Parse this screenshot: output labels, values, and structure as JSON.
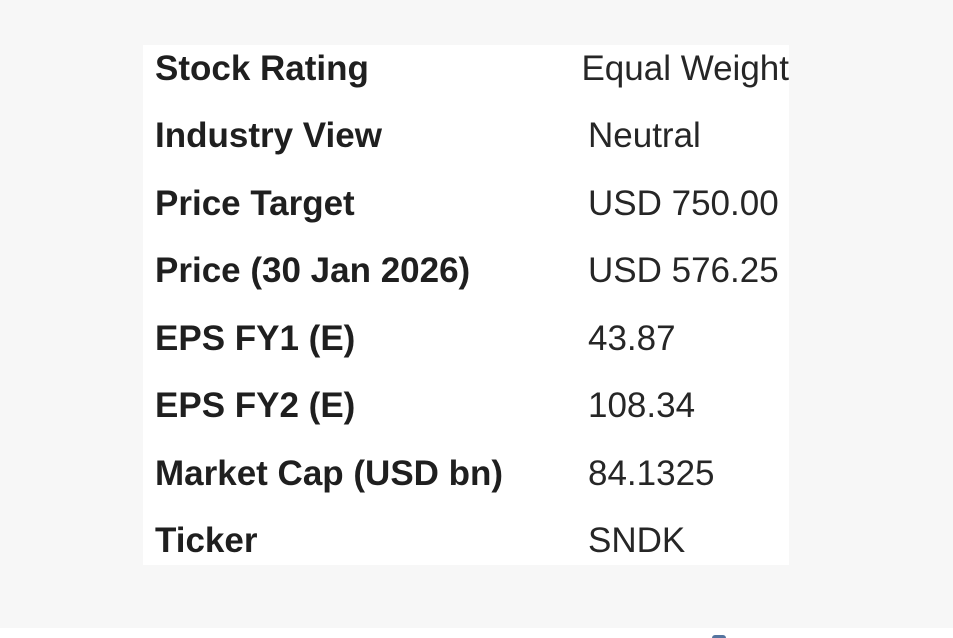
{
  "summary_table": {
    "rows": [
      {
        "label": "Stock Rating",
        "value": "Equal Weight"
      },
      {
        "label": "Industry View",
        "value": "Neutral"
      },
      {
        "label": "Price Target",
        "value": "USD 750.00"
      },
      {
        "label": "Price (30 Jan 2026)",
        "value": "USD 576.25"
      },
      {
        "label": "EPS FY1 (E)",
        "value": "43.87"
      },
      {
        "label": "EPS FY2 (E)",
        "value": "108.34"
      },
      {
        "label": "Market Cap (USD bn)",
        "value": "84.1325"
      },
      {
        "label": "Ticker",
        "value": "SNDK"
      }
    ]
  },
  "icons": {
    "bottom_edge_icon": "clipped-blue-logo"
  },
  "colors": {
    "page_background": "#f7f7f7",
    "card_background": "#ffffff",
    "label_text": "#1f1f1f",
    "value_text": "#262626",
    "logo_accent": "#54749f"
  }
}
